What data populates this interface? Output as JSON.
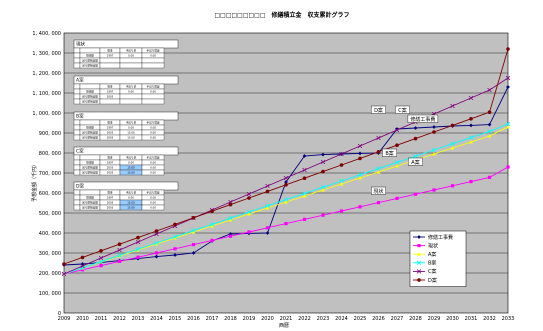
{
  "chart_data": {
    "type": "line",
    "title": "□□□□□□□□□　修繕積立金　収支累計グラフ",
    "xlabel": "西暦",
    "ylabel": "予想金額（千円）",
    "ylim": [
      0,
      1400000
    ],
    "yticks": [
      "0",
      "100, 000",
      "200, 000",
      "300, 000",
      "400, 000",
      "500, 000",
      "600, 000",
      "700, 000",
      "800, 000",
      "900, 000",
      "1, 000, 000",
      "1, 100, 000",
      "1, 200, 000",
      "1, 300, 000",
      "1, 400, 000"
    ],
    "x": [
      2009,
      2010,
      2011,
      2012,
      2013,
      2014,
      2015,
      2016,
      2017,
      2018,
      2019,
      2020,
      2021,
      2022,
      2023,
      2024,
      2025,
      2026,
      2027,
      2028,
      2029,
      2030,
      2031,
      2032,
      2033
    ],
    "grid": true,
    "legend_position": "bottom-right",
    "series": [
      {
        "name": "修繕工事費",
        "color": "#000080",
        "marker": "diamond",
        "values": [
          240000,
          245000,
          252000,
          262000,
          272000,
          282000,
          290000,
          300000,
          360000,
          395000,
          398000,
          400000,
          655000,
          785000,
          792000,
          795000,
          798000,
          800000,
          920000,
          925000,
          930000,
          935000,
          938000,
          942000,
          1130000
        ]
      },
      {
        "name": "現状",
        "color": "#ff00ff",
        "marker": "square",
        "values": [
          195000,
          216000,
          237000,
          258000,
          279000,
          300000,
          321000,
          342000,
          363000,
          384000,
          405000,
          426000,
          447000,
          468000,
          489000,
          510000,
          531000,
          552000,
          573000,
          594000,
          615000,
          636000,
          657000,
          678000,
          730000
        ]
      },
      {
        "name": "A案",
        "color": "#ffff00",
        "marker": "triangle",
        "values": [
          195000,
          225000,
          255000,
          285000,
          315000,
          345000,
          375000,
          405000,
          435000,
          465000,
          495000,
          525000,
          555000,
          585000,
          615000,
          645000,
          675000,
          705000,
          735000,
          765000,
          795000,
          825000,
          855000,
          885000,
          930000
        ]
      },
      {
        "name": "B案",
        "color": "#00ffff",
        "marker": "x",
        "values": [
          195000,
          226000,
          257000,
          288000,
          319000,
          350000,
          381000,
          412000,
          443000,
          474000,
          505000,
          536000,
          567000,
          598000,
          629000,
          660000,
          691000,
          722000,
          753000,
          784000,
          815000,
          846000,
          877000,
          908000,
          945000
        ]
      },
      {
        "name": "C案",
        "color": "#800080",
        "marker": "x",
        "values": [
          195000,
          235000,
          275000,
          315000,
          355000,
          395000,
          435000,
          475000,
          515000,
          555000,
          595000,
          635000,
          675000,
          715000,
          755000,
          795000,
          835000,
          875000,
          915000,
          955000,
          995000,
          1035000,
          1075000,
          1115000,
          1175000
        ]
      },
      {
        "name": "D案",
        "color": "#800000",
        "marker": "circle",
        "values": [
          245000,
          278000,
          311000,
          344000,
          377000,
          410000,
          443000,
          476000,
          509000,
          542000,
          575000,
          608000,
          641000,
          674000,
          707000,
          740000,
          773000,
          806000,
          839000,
          872000,
          905000,
          938000,
          971000,
          1004000,
          1320000
        ]
      }
    ],
    "annotations": [
      {
        "text": "D案",
        "x": 2026,
        "y": 1015000
      },
      {
        "text": "C案",
        "x": 2027.3,
        "y": 1015000
      },
      {
        "text": "修繕工事費",
        "x": 2028.4,
        "y": 970000
      },
      {
        "text": "B案",
        "x": 2026.6,
        "y": 800000
      },
      {
        "text": "A案",
        "x": 2028,
        "y": 755000
      },
      {
        "text": "現状",
        "x": 2026,
        "y": 610000
      }
    ],
    "side_tables": [
      {
        "title": "現状",
        "rows": [
          [
            "",
            "",
            "現金",
            "手出り金",
            "手出り増減"
          ],
          [
            "",
            "現金額",
            "1997",
            "0.00",
            "0.00"
          ],
          [
            "",
            "前々期損益額",
            "",
            "",
            ""
          ],
          [
            "",
            "前々期損益額",
            "",
            "",
            ""
          ]
        ]
      },
      {
        "title": "A案",
        "rows": [
          [
            "",
            "",
            "現金",
            "手出り金",
            "手出り増減"
          ],
          [
            "",
            "現金額",
            "1997",
            "0.00",
            "0.00"
          ],
          [
            "",
            "前々期損益額",
            "2003",
            "",
            ""
          ],
          [
            "",
            "前々期損益額",
            "",
            "",
            ""
          ]
        ]
      },
      {
        "title": "B案",
        "rows": [
          [
            "",
            "",
            "現金",
            "手出り金",
            "手出り増減"
          ],
          [
            "",
            "現金額",
            "1997",
            "0.00",
            "0.00"
          ],
          [
            "",
            "前々期損益額",
            "2003",
            "15.00",
            "0.00"
          ],
          [
            "",
            "前々期損益額",
            "2003",
            "15.00",
            "0.00"
          ]
        ]
      },
      {
        "title": "C案",
        "rows": [
          [
            "",
            "",
            "現金",
            "手出り金",
            "手出り増減"
          ],
          [
            "",
            "現金額",
            "1997",
            "0.00",
            "0.00"
          ],
          [
            "",
            "前々期損益額",
            "2003",
            "15.00",
            "0.00"
          ],
          [
            "",
            "前々期損益額",
            "2003",
            "15.00",
            "0.00"
          ]
        ]
      },
      {
        "title": "D案",
        "rows": [
          [
            "",
            "",
            "現金",
            "手出り金",
            "手出り増減"
          ],
          [
            "",
            "現金額",
            "1997",
            "0.00",
            "0.00"
          ],
          [
            "",
            "前々期損益額",
            "2003",
            "15.00",
            "0.00"
          ],
          [
            "",
            "前々期損益額",
            "2003",
            "15.00",
            "0.00"
          ]
        ]
      }
    ]
  },
  "colors": {
    "plot_background": "#c0c0c0",
    "table_highlight": "#99ccff"
  }
}
